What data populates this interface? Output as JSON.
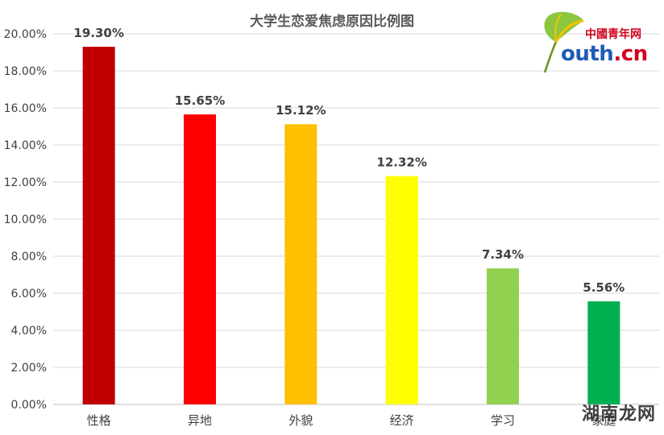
{
  "chart_data": {
    "type": "bar",
    "title": "大学生恋爱焦虑原因比例图",
    "categories": [
      "性格",
      "异地",
      "外貌",
      "经济",
      "学习",
      "家庭"
    ],
    "values": [
      19.3,
      15.65,
      15.12,
      12.32,
      7.34,
      5.56
    ],
    "data_labels": [
      "19.30%",
      "15.65%",
      "15.12%",
      "12.32%",
      "7.34%",
      "5.56%"
    ],
    "bar_colors": [
      "#c00000",
      "#ff0000",
      "#ffc000",
      "#ffff00",
      "#92d050",
      "#00b050"
    ],
    "ylim": [
      0,
      20
    ],
    "yticks": [
      "0.00%",
      "2.00%",
      "4.00%",
      "6.00%",
      "8.00%",
      "10.00%",
      "12.00%",
      "14.00%",
      "16.00%",
      "18.00%",
      "20.00%"
    ],
    "grid": true,
    "xlabel": "",
    "ylabel": ""
  },
  "logo": {
    "chinese": "中國青年网",
    "brand_prefix": "outh",
    "brand_suffix": ".cn"
  },
  "watermark": "湖南龙网"
}
